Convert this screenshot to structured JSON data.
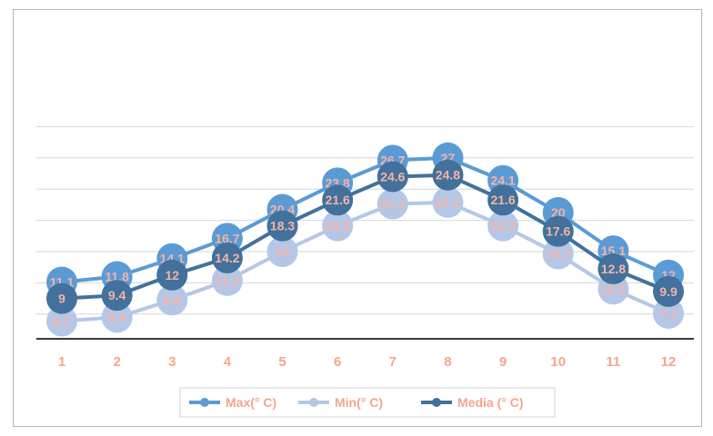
{
  "chart_data": {
    "type": "line",
    "categories": [
      "1",
      "2",
      "3",
      "4",
      "5",
      "6",
      "7",
      "8",
      "9",
      "10",
      "11",
      "12"
    ],
    "series": [
      {
        "name": "Max(° C)",
        "color": "#5b9bd5",
        "values": [
          11.1,
          11.8,
          14.1,
          16.7,
          20.4,
          23.8,
          26.7,
          27,
          24.1,
          20,
          15.1,
          12
        ]
      },
      {
        "name": "Min(° C)",
        "color": "#b4c7e7",
        "values": [
          6.1,
          6.6,
          8.8,
          11.3,
          15,
          18.3,
          21.1,
          21.3,
          18.3,
          14.7,
          10.2,
          7.1
        ]
      },
      {
        "name": "Media (° C)",
        "color": "#41719c",
        "values": [
          9,
          9.4,
          12,
          14.2,
          18.3,
          21.6,
          24.6,
          24.8,
          21.6,
          17.6,
          12.8,
          9.9
        ]
      }
    ],
    "title": "",
    "xlabel": "",
    "ylabel": "",
    "grid": true,
    "legend": "bottom",
    "data_label_color": "#f7b3a6",
    "tick_label_color": "#f4a58c"
  }
}
